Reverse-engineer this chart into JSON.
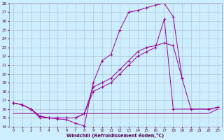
{
  "bg_color": "#cceeff",
  "grid_color": "#aabbcc",
  "line_color": "#990099",
  "xlabel": "Windchill (Refroidissement éolien,°C)",
  "xlim": [
    -0.5,
    23.5
  ],
  "ylim": [
    14,
    28
  ],
  "xticks": [
    0,
    1,
    2,
    3,
    4,
    5,
    6,
    7,
    8,
    9,
    10,
    11,
    12,
    13,
    14,
    15,
    16,
    17,
    18,
    19,
    20,
    21,
    22,
    23
  ],
  "yticks": [
    14,
    15,
    16,
    17,
    18,
    19,
    20,
    21,
    22,
    23,
    24,
    25,
    26,
    27,
    28
  ],
  "series": [
    {
      "x": [
        0,
        1,
        2,
        3,
        4,
        5,
        6,
        7,
        8,
        9,
        10,
        11,
        12,
        13,
        14,
        15,
        16,
        17,
        18,
        19
      ],
      "y": [
        16.7,
        16.5,
        16.0,
        15.2,
        15.0,
        14.9,
        14.8,
        14.4,
        14.1,
        19.0,
        21.5,
        22.2,
        25.0,
        27.0,
        27.2,
        27.5,
        27.8,
        28.0,
        26.5,
        19.5
      ],
      "marker": true
    },
    {
      "x": [
        0,
        1,
        2,
        3,
        4,
        5,
        6,
        7,
        8,
        9,
        10,
        11,
        12,
        13,
        14,
        15,
        16,
        17,
        18,
        19,
        20,
        22,
        23
      ],
      "y": [
        16.7,
        16.5,
        16.0,
        15.2,
        15.0,
        15.0,
        15.0,
        15.0,
        15.5,
        18.5,
        19.0,
        19.5,
        20.5,
        21.5,
        22.5,
        23.0,
        23.2,
        23.5,
        23.2,
        19.5,
        16.0,
        16.0,
        16.2
      ],
      "marker": true
    },
    {
      "x": [
        0,
        1,
        2,
        3,
        4,
        5,
        6,
        7,
        8,
        9,
        10,
        11,
        12,
        13,
        14,
        15,
        16,
        17,
        18,
        22,
        23
      ],
      "y": [
        16.7,
        16.5,
        16.0,
        15.0,
        15.0,
        15.0,
        15.0,
        15.0,
        15.5,
        18.0,
        18.5,
        19.0,
        20.0,
        21.0,
        22.0,
        22.5,
        23.0,
        26.2,
        16.0,
        16.0,
        16.2
      ],
      "marker": true
    },
    {
      "x": [
        0,
        1,
        2,
        3,
        4,
        5,
        6,
        7,
        8,
        9,
        10,
        11,
        12,
        13,
        14,
        15,
        16,
        17,
        18,
        19,
        20,
        21,
        22,
        23
      ],
      "y": [
        15.5,
        15.5,
        15.5,
        15.5,
        15.5,
        15.5,
        15.5,
        15.5,
        15.5,
        15.5,
        15.5,
        15.5,
        15.5,
        15.5,
        15.5,
        15.5,
        15.5,
        15.5,
        15.5,
        15.5,
        15.5,
        15.5,
        15.5,
        16.0
      ],
      "marker": false
    }
  ]
}
